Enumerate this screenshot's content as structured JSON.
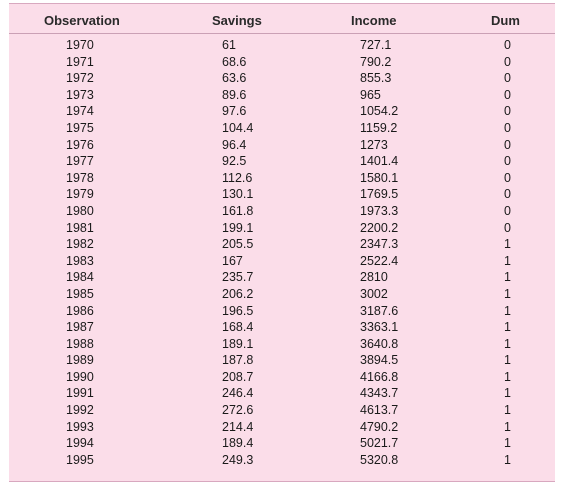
{
  "table": {
    "headers": {
      "observation": "Observation",
      "savings": "Savings",
      "income": "Income",
      "dum": "Dum"
    },
    "rows": [
      {
        "observation": "1970",
        "savings": "61",
        "income": "727.1",
        "dum": "0"
      },
      {
        "observation": "1971",
        "savings": "68.6",
        "income": "790.2",
        "dum": "0"
      },
      {
        "observation": "1972",
        "savings": "63.6",
        "income": "855.3",
        "dum": "0"
      },
      {
        "observation": "1973",
        "savings": "89.6",
        "income": "965",
        "dum": "0"
      },
      {
        "observation": "1974",
        "savings": "97.6",
        "income": "1054.2",
        "dum": "0"
      },
      {
        "observation": "1975",
        "savings": "104.4",
        "income": "1159.2",
        "dum": "0"
      },
      {
        "observation": "1976",
        "savings": "96.4",
        "income": "1273",
        "dum": "0"
      },
      {
        "observation": "1977",
        "savings": "92.5",
        "income": "1401.4",
        "dum": "0"
      },
      {
        "observation": "1978",
        "savings": "112.6",
        "income": "1580.1",
        "dum": "0"
      },
      {
        "observation": "1979",
        "savings": "130.1",
        "income": "1769.5",
        "dum": "0"
      },
      {
        "observation": "1980",
        "savings": "161.8",
        "income": "1973.3",
        "dum": "0"
      },
      {
        "observation": "1981",
        "savings": "199.1",
        "income": "2200.2",
        "dum": "0"
      },
      {
        "observation": "1982",
        "savings": "205.5",
        "income": "2347.3",
        "dum": "1"
      },
      {
        "observation": "1983",
        "savings": "167",
        "income": "2522.4",
        "dum": "1"
      },
      {
        "observation": "1984",
        "savings": "235.7",
        "income": "2810",
        "dum": "1"
      },
      {
        "observation": "1985",
        "savings": "206.2",
        "income": "3002",
        "dum": "1"
      },
      {
        "observation": "1986",
        "savings": "196.5",
        "income": "3187.6",
        "dum": "1"
      },
      {
        "observation": "1987",
        "savings": "168.4",
        "income": "3363.1",
        "dum": "1"
      },
      {
        "observation": "1988",
        "savings": "189.1",
        "income": "3640.8",
        "dum": "1"
      },
      {
        "observation": "1989",
        "savings": "187.8",
        "income": "3894.5",
        "dum": "1"
      },
      {
        "observation": "1990",
        "savings": "208.7",
        "income": "4166.8",
        "dum": "1"
      },
      {
        "observation": "1991",
        "savings": "246.4",
        "income": "4343.7",
        "dum": "1"
      },
      {
        "observation": "1992",
        "savings": "272.6",
        "income": "4613.7",
        "dum": "1"
      },
      {
        "observation": "1993",
        "savings": "214.4",
        "income": "4790.2",
        "dum": "1"
      },
      {
        "observation": "1994",
        "savings": "189.4",
        "income": "5021.7",
        "dum": "1"
      },
      {
        "observation": "1995",
        "savings": "249.3",
        "income": "5320.8",
        "dum": "1"
      }
    ]
  }
}
